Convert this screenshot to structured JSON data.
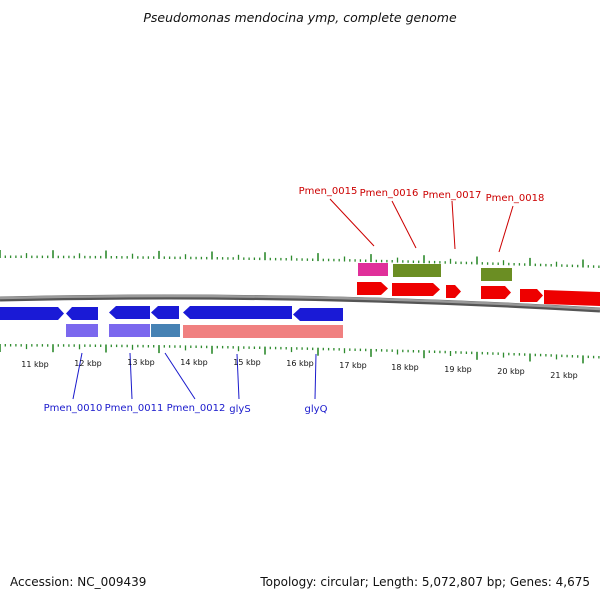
{
  "title": "Pseudomonas mendocina ymp, complete genome",
  "footer": {
    "accession": "Accession: NC_009439",
    "summary": "Topology: circular; Length: 5,072,807 bp; Genes: 4,675"
  },
  "colors": {
    "tick": "#2e8b2e",
    "backbone": "#808080",
    "forward_cds": "#ee0000",
    "reverse_cds": "#1a1ad6",
    "forward_label": "#cc0000",
    "reverse_label": "#1a1acc",
    "cog_magenta": "#e0309a",
    "cog_olive": "#6b8e23",
    "cog_purple": "#7b68ee",
    "cog_steel": "#4682b4",
    "cog_salmon": "#f08080"
  },
  "kbp_labels": [
    "11 kbp",
    "12 kbp",
    "13 kbp",
    "14 kbp",
    "15 kbp",
    "16 kbp",
    "17 kbp",
    "18 kbp",
    "19 kbp",
    "20 kbp",
    "21 kbp"
  ],
  "forward_gene_labels": [
    "Pmen_0015",
    "Pmen_0016",
    "Pmen_0017",
    "Pmen_0018"
  ],
  "reverse_gene_labels": [
    "Pmen_0010",
    "Pmen_0011",
    "Pmen_0012",
    "glyS",
    "glyQ"
  ]
}
